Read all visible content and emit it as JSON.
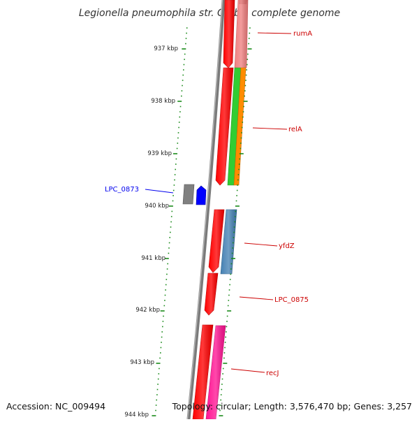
{
  "title": "Legionella pneumophila str. Corby, complete genome",
  "footer": {
    "accession": "Accession: NC_009494",
    "summary": "Topology: circular; Length: 3,576,470 bp; Genes: 3,257"
  },
  "colors": {
    "backbone": "#808080",
    "forward_cds": "#ff0000",
    "reverse_cds": "#0000ff",
    "tick": "#1a8a1a",
    "label_forward": "#cc0000",
    "label_reverse": "#0000ee"
  },
  "scale": {
    "unit": "kbp",
    "ticks": [
      {
        "label": "937 kbp"
      },
      {
        "label": "938 kbp"
      },
      {
        "label": "939 kbp"
      },
      {
        "label": "940 kbp"
      },
      {
        "label": "941 kbp"
      },
      {
        "label": "942 kbp"
      },
      {
        "label": "943 kbp"
      },
      {
        "label": "944 kbp"
      }
    ]
  },
  "genes": [
    {
      "label": "rumA",
      "strand": "forward",
      "color": "#cc0000"
    },
    {
      "label": "relA",
      "strand": "forward",
      "color": "#cc0000"
    },
    {
      "label": "LPC_0873",
      "strand": "reverse",
      "color": "#0000ee"
    },
    {
      "label": "yfdZ",
      "strand": "forward",
      "color": "#cc0000"
    },
    {
      "label": "LPC_0875",
      "strand": "forward",
      "color": "#cc0000"
    },
    {
      "label": "recJ",
      "strand": "forward",
      "color": "#cc0000"
    }
  ],
  "feature_colors": [
    "#ff0000",
    "#f08080",
    "#32cd32",
    "#ff8c00",
    "#4682b4",
    "#ff1493",
    "#808080",
    "#0000ff"
  ]
}
